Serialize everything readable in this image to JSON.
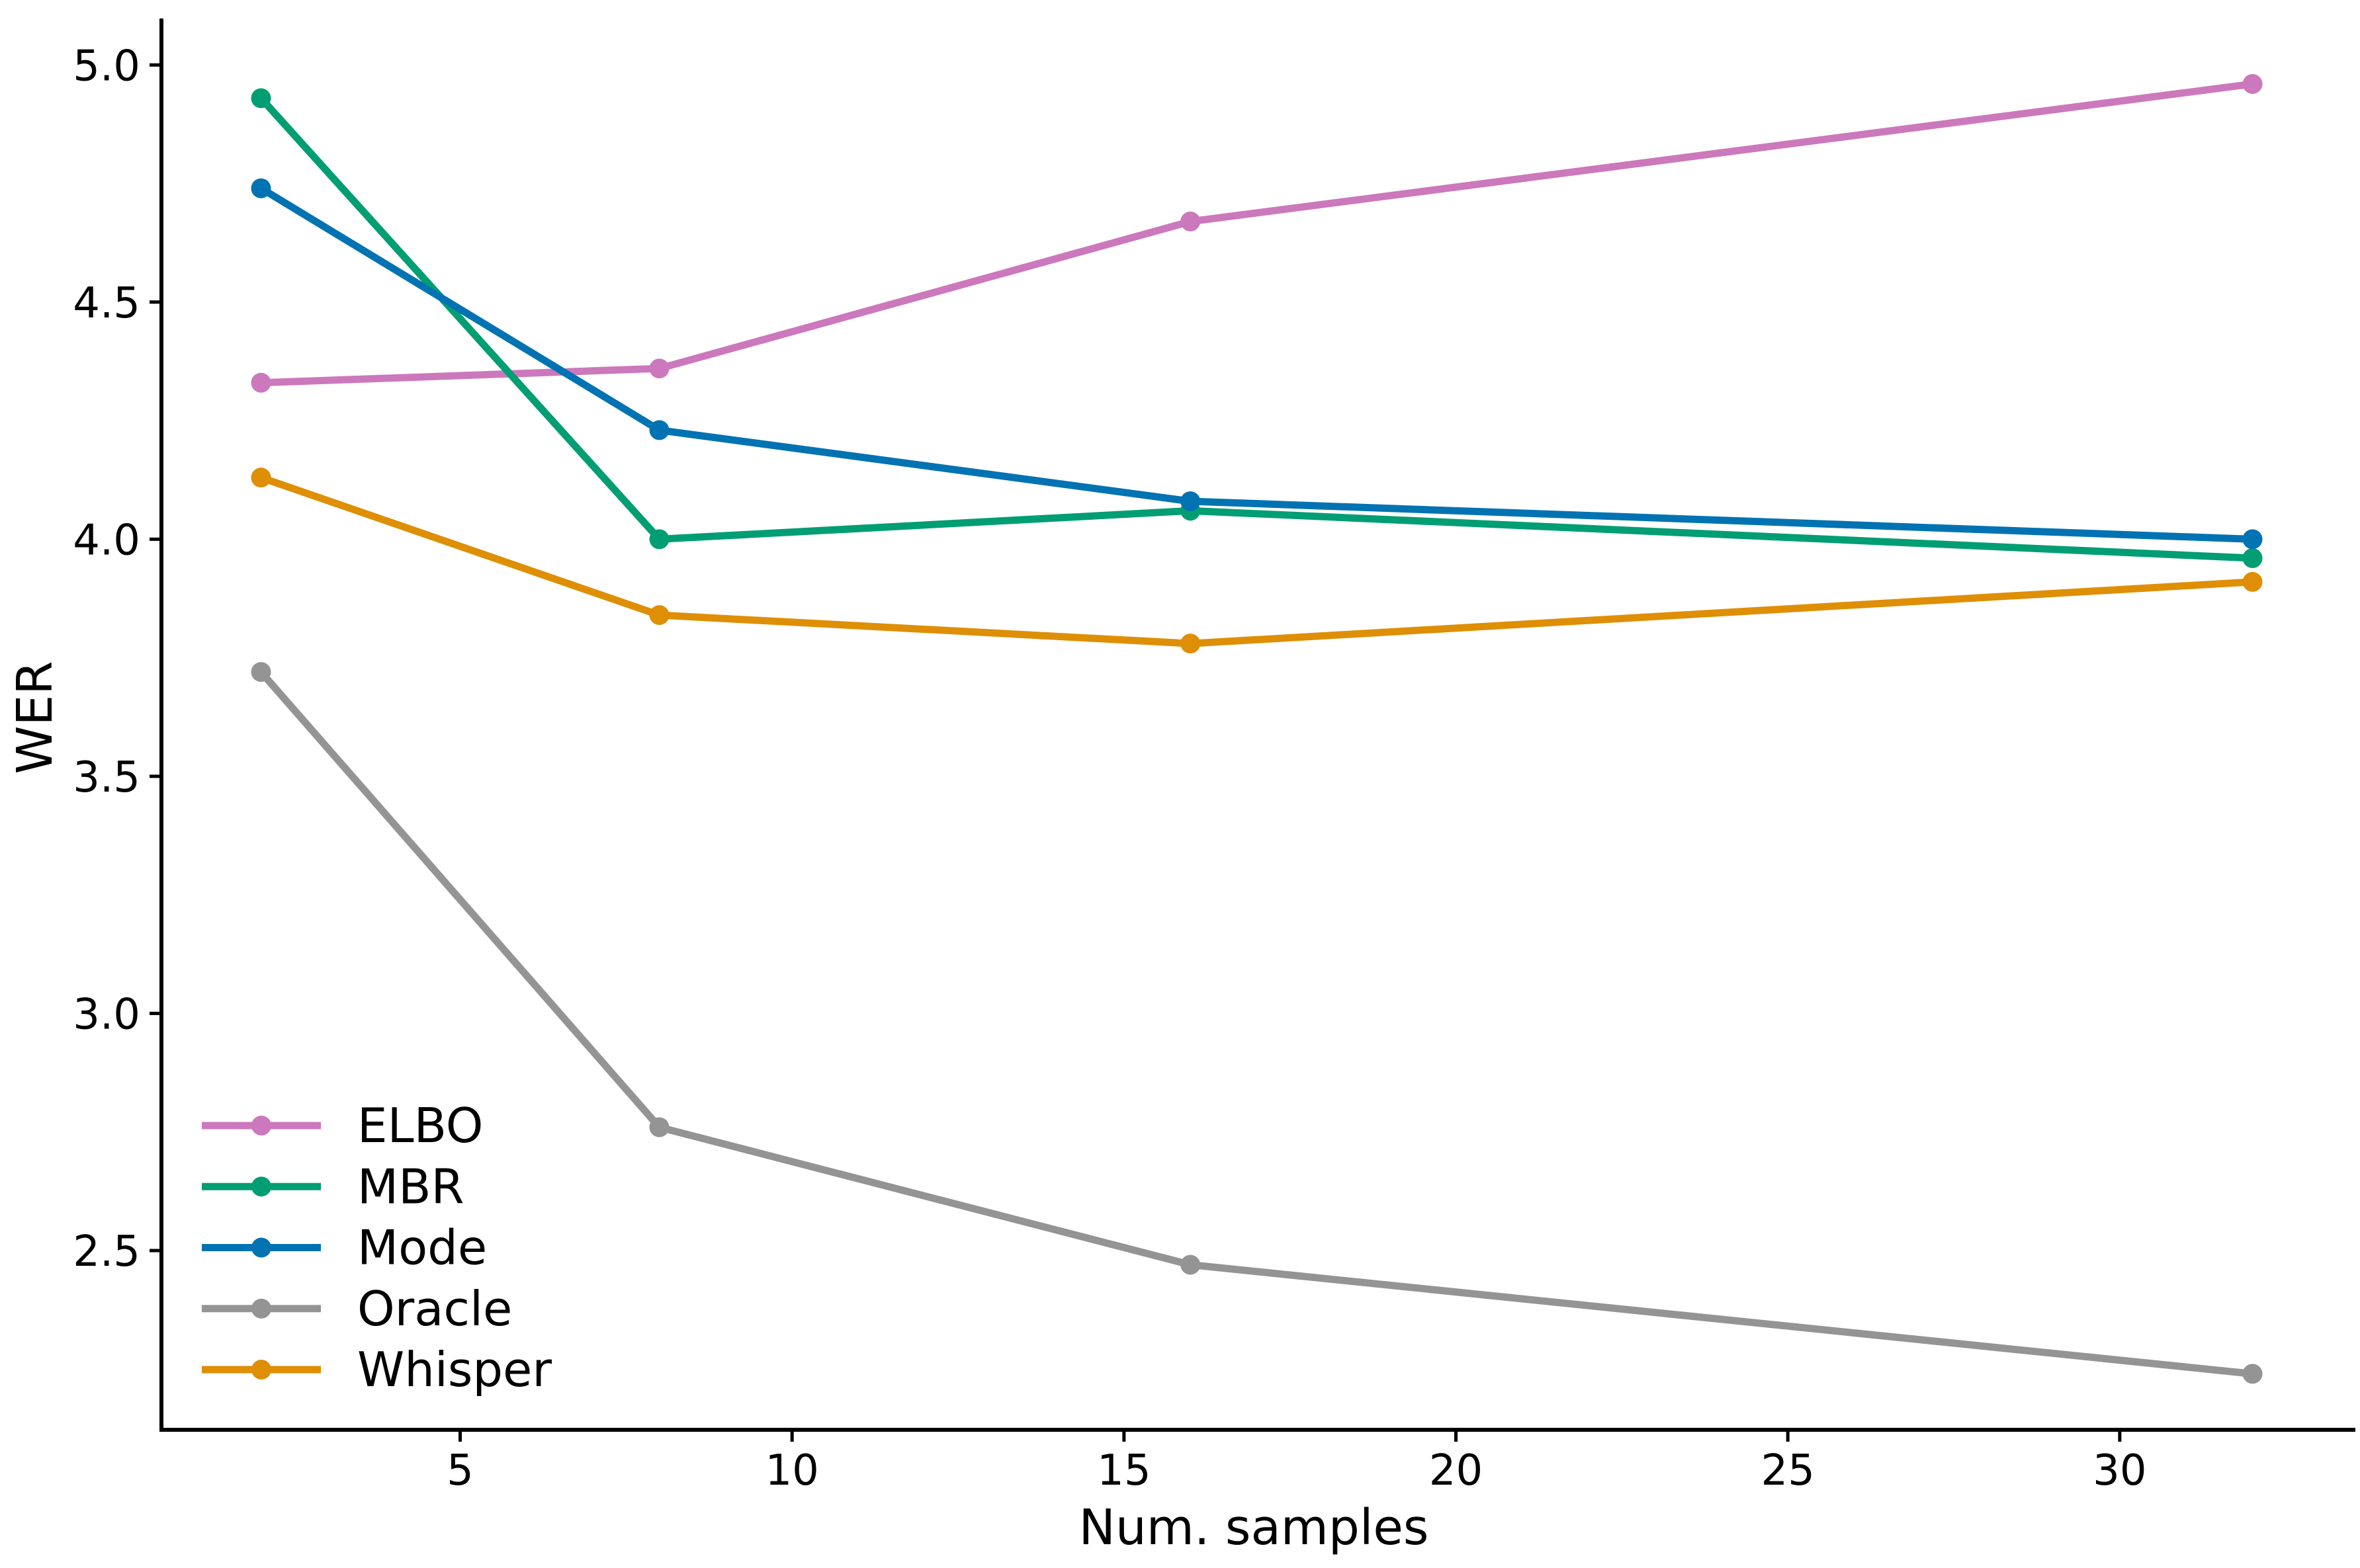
{
  "figure": {
    "background": "#ffffff",
    "spine_color": "#000000"
  },
  "chart_data": {
    "type": "line",
    "title": "",
    "xlabel": "Num. samples",
    "ylabel": "WER",
    "x": [
      2,
      8,
      16,
      32
    ],
    "series": [
      {
        "name": "ELBO",
        "color": "#cc78bc",
        "values": [
          4.33,
          4.36,
          4.67,
          4.96
        ]
      },
      {
        "name": "MBR",
        "color": "#029e73",
        "values": [
          4.93,
          4.0,
          4.06,
          3.96
        ]
      },
      {
        "name": "Mode",
        "color": "#0173b2",
        "values": [
          4.74,
          4.23,
          4.08,
          4.0
        ]
      },
      {
        "name": "Oracle",
        "color": "#949494",
        "values": [
          3.72,
          2.76,
          2.47,
          2.24
        ]
      },
      {
        "name": "Whisper",
        "color": "#de8f05",
        "values": [
          4.13,
          3.84,
          3.78,
          3.91
        ]
      }
    ],
    "x_ticks": [
      5,
      10,
      15,
      20,
      25,
      30
    ],
    "y_ticks": [
      2.5,
      3.0,
      3.5,
      4.0,
      4.5,
      5.0
    ],
    "xlim": [
      0.5,
      33.4
    ],
    "ylim": [
      2.122,
      5.098
    ],
    "grid": false,
    "marker": "circle",
    "legend_position": "lower-left"
  }
}
